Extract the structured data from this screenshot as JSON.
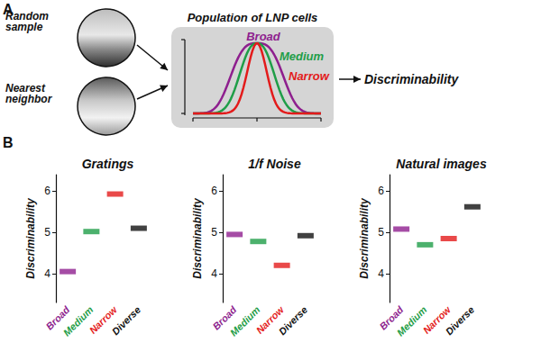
{
  "panel_labels": [
    "A",
    "B"
  ],
  "diagram": {
    "inputs": [
      "Random sample",
      "Nearest neighbor"
    ],
    "box_title": "Population of LNP cells",
    "curves": [
      {
        "name": "Broad",
        "color": "#8e1f8e"
      },
      {
        "name": "Medium",
        "color": "#1f9e48"
      },
      {
        "name": "Narrow",
        "color": "#e31b1b"
      }
    ],
    "output": "Discriminability"
  },
  "chart_data": [
    {
      "type": "scatter",
      "title": "Gratings",
      "y_label": "Discriminability",
      "categories": [
        "Broad",
        "Medium",
        "Narrow",
        "Diverse"
      ],
      "values": [
        4.05,
        5.02,
        5.93,
        5.1
      ],
      "colors": [
        "#8e1f8e",
        "#1f9e48",
        "#e31b1b",
        "#111111"
      ],
      "ylim": [
        3.3,
        6.4
      ],
      "yticks": [
        4,
        5,
        6
      ],
      "grid": false,
      "marker": "dash"
    },
    {
      "type": "scatter",
      "title": "1/f Noise",
      "y_label": "Discriminability",
      "categories": [
        "Broad",
        "Medium",
        "Narrow",
        "Diverse"
      ],
      "values": [
        4.95,
        4.78,
        4.2,
        4.92
      ],
      "colors": [
        "#8e1f8e",
        "#1f9e48",
        "#e31b1b",
        "#111111"
      ],
      "ylim": [
        3.3,
        6.4
      ],
      "yticks": [
        4,
        5,
        6
      ],
      "grid": false,
      "marker": "dash"
    },
    {
      "type": "scatter",
      "title": "Natural images",
      "y_label": "Discriminability",
      "categories": [
        "Broad",
        "Medium",
        "Narrow",
        "Diverse"
      ],
      "values": [
        5.08,
        4.7,
        4.85,
        5.62
      ],
      "colors": [
        "#8e1f8e",
        "#1f9e48",
        "#e31b1b",
        "#111111"
      ],
      "ylim": [
        3.3,
        6.4
      ],
      "yticks": [
        4,
        5,
        6
      ],
      "grid": false,
      "marker": "dash"
    }
  ]
}
